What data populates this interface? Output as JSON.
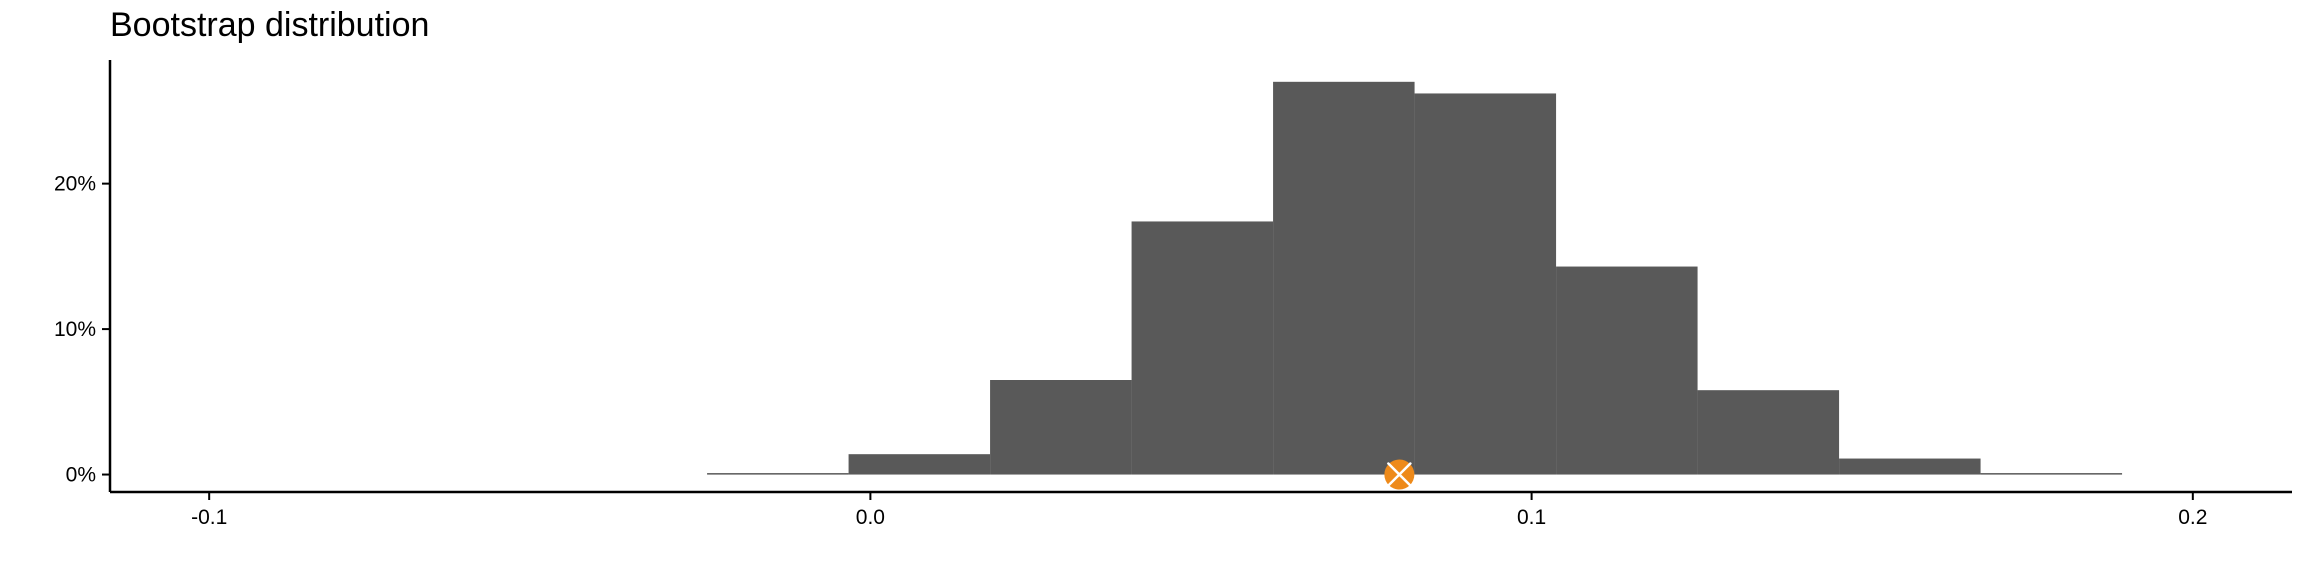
{
  "chart_data": {
    "type": "bar",
    "title": "Bootstrap distribution",
    "xlabel": "",
    "ylabel": "",
    "xlim": [
      -0.115,
      0.215
    ],
    "ylim": [
      -0.012,
      0.285
    ],
    "x_ticks": [
      -0.1,
      0.0,
      0.1,
      0.2
    ],
    "x_tick_labels": [
      "-0.1",
      "0.0",
      "0.1",
      "0.2"
    ],
    "y_ticks": [
      0.0,
      0.1,
      0.2
    ],
    "y_tick_labels": [
      "0%",
      "10%",
      "20%"
    ],
    "bins": [
      {
        "x0": -0.0247,
        "x1": -0.0033,
        "value": 0.001
      },
      {
        "x0": -0.0033,
        "x1": 0.0181,
        "value": 0.014
      },
      {
        "x0": 0.0181,
        "x1": 0.0395,
        "value": 0.065
      },
      {
        "x0": 0.0395,
        "x1": 0.0609,
        "value": 0.174
      },
      {
        "x0": 0.0609,
        "x1": 0.0823,
        "value": 0.27
      },
      {
        "x0": 0.0823,
        "x1": 0.1037,
        "value": 0.262
      },
      {
        "x0": 0.1037,
        "x1": 0.1251,
        "value": 0.143
      },
      {
        "x0": 0.1251,
        "x1": 0.1465,
        "value": 0.058
      },
      {
        "x0": 0.1465,
        "x1": 0.1679,
        "value": 0.011
      },
      {
        "x0": 0.1679,
        "x1": 0.1893,
        "value": 0.001
      }
    ],
    "bar_color": "#595959",
    "point_estimate": {
      "x": 0.08,
      "y": 0.0,
      "color": "#ee8a1a"
    },
    "grid": false,
    "legend": "none"
  }
}
